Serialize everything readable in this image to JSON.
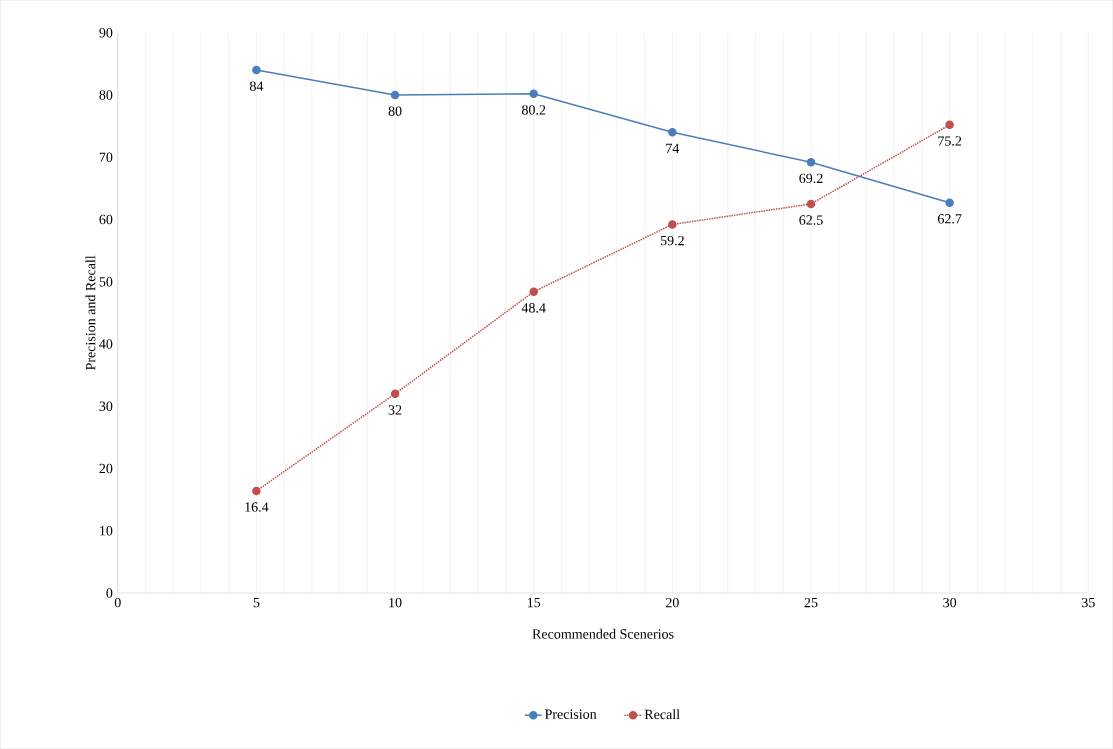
{
  "chart_data": {
    "type": "line",
    "xlabel": "Recommended Scenerios",
    "ylabel": "Precision and Recall",
    "x": [
      5,
      10,
      15,
      20,
      25,
      30
    ],
    "series": [
      {
        "name": "Precision",
        "color": "#4a7ebb",
        "values": [
          84,
          80,
          80.2,
          74,
          69.2,
          62.7
        ],
        "line_style": "solid"
      },
      {
        "name": "Recall",
        "color": "#c0504d",
        "values": [
          16.4,
          32,
          48.4,
          59.2,
          62.5,
          75.2
        ],
        "line_style": "dotted"
      }
    ],
    "xlim": [
      0,
      35
    ],
    "ylim": [
      0,
      90
    ],
    "xticks": [
      0,
      {
        "value": 1,
        "label": null
      },
      {
        "value": 2,
        "label": null
      },
      {
        "value": 3,
        "label": null
      },
      {
        "value": 4,
        "label": null
      },
      5,
      {
        "value": 6,
        "label": null
      },
      {
        "value": 7,
        "label": null
      },
      {
        "value": 8,
        "label": null
      },
      {
        "value": 9,
        "label": null
      },
      10,
      {
        "value": 11,
        "label": null
      },
      {
        "value": 12,
        "label": null
      },
      {
        "value": 13,
        "label": null
      },
      {
        "value": 14,
        "label": null
      },
      15,
      {
        "value": 16,
        "label": null
      },
      {
        "value": 17,
        "label": null
      },
      {
        "value": 18,
        "label": null
      },
      {
        "value": 19,
        "label": null
      },
      20,
      {
        "value": 21,
        "label": null
      },
      {
        "value": 22,
        "label": null
      },
      {
        "value": 23,
        "label": null
      },
      {
        "value": 24,
        "label": null
      },
      25,
      {
        "value": 26,
        "label": null
      },
      {
        "value": 27,
        "label": null
      },
      {
        "value": 28,
        "label": null
      },
      {
        "value": 29,
        "label": null
      },
      30,
      {
        "value": 31,
        "label": null
      },
      {
        "value": 32,
        "label": null
      },
      {
        "value": 33,
        "label": null
      },
      {
        "value": 34,
        "label": null
      },
      35
    ],
    "yticks": [
      0,
      10,
      20,
      30,
      40,
      50,
      60,
      70,
      80,
      90
    ],
    "grid": "x",
    "legend": "bottom",
    "marker": "circle",
    "data_labels": true
  }
}
